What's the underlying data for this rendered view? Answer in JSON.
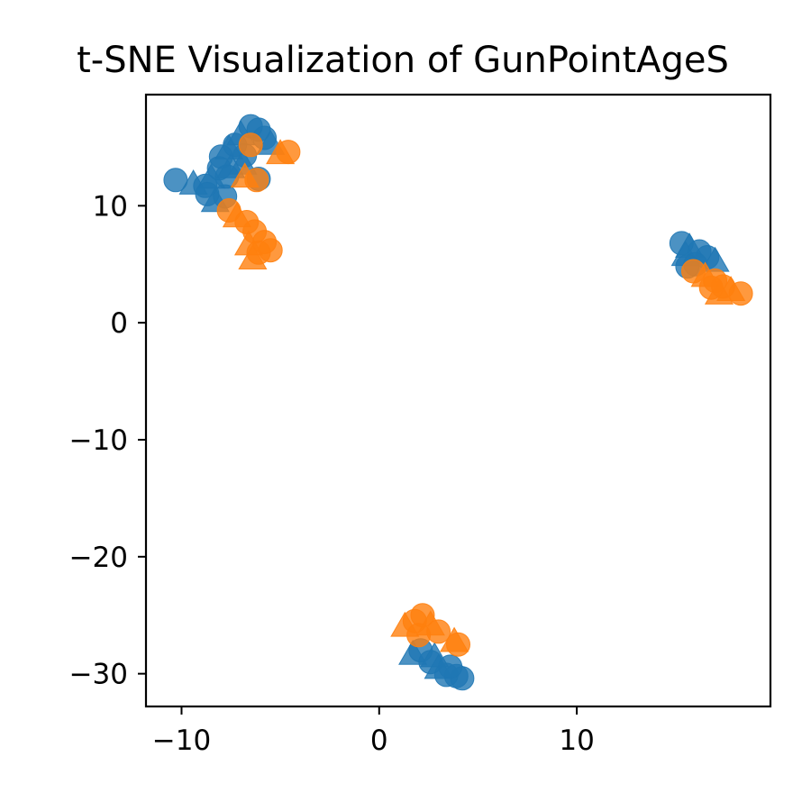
{
  "chart_data": {
    "type": "scatter",
    "title": "t-SNE Visualization of GunPointAgeS",
    "xlabel": "",
    "ylabel": "",
    "xlim": [
      -11.8,
      19.8
    ],
    "ylim": [
      -32.8,
      19.5
    ],
    "xticks": [
      -10,
      0,
      10
    ],
    "xtick_labels": [
      "−10",
      "0",
      "10"
    ],
    "yticks": [
      10,
      0,
      -10,
      -20,
      -30
    ],
    "ytick_labels": [
      "10",
      "0",
      "−10",
      "−20",
      "−30"
    ],
    "grid": false,
    "marker_styles": [
      "circle",
      "triangle"
    ],
    "series": [
      {
        "color": "#1f77b4",
        "points": [
          [
            -10.3,
            12.2,
            "circle"
          ],
          [
            -9.4,
            11.8,
            "triangle"
          ],
          [
            -8.8,
            11.7,
            "circle"
          ],
          [
            -8.5,
            12.3,
            "triangle"
          ],
          [
            -8.1,
            13.2,
            "circle"
          ],
          [
            -8.0,
            14.2,
            "circle"
          ],
          [
            -7.6,
            14.8,
            "triangle"
          ],
          [
            -7.3,
            15.2,
            "circle"
          ],
          [
            -7.0,
            16.0,
            "triangle"
          ],
          [
            -6.5,
            16.8,
            "circle"
          ],
          [
            -6.1,
            16.5,
            "circle"
          ],
          [
            -5.8,
            15.8,
            "circle"
          ],
          [
            -5.5,
            15.2,
            "triangle"
          ],
          [
            -6.8,
            14.3,
            "circle"
          ],
          [
            -7.5,
            13.2,
            "triangle"
          ],
          [
            -8.3,
            10.3,
            "triangle"
          ],
          [
            -7.8,
            10.8,
            "circle"
          ],
          [
            -6.1,
            12.3,
            "circle"
          ],
          [
            -6.9,
            13.5,
            "triangle"
          ],
          [
            -7.7,
            12.5,
            "circle"
          ],
          [
            -8.7,
            11.0,
            "circle"
          ],
          [
            15.3,
            6.8,
            "circle"
          ],
          [
            15.7,
            6.4,
            "triangle"
          ],
          [
            16.2,
            6.1,
            "circle"
          ],
          [
            16.6,
            5.6,
            "circle"
          ],
          [
            15.5,
            5.7,
            "triangle"
          ],
          [
            16.0,
            5.0,
            "circle"
          ],
          [
            15.6,
            4.8,
            "circle"
          ],
          [
            17.0,
            5.2,
            "triangle"
          ],
          [
            1.7,
            -28.4,
            "triangle"
          ],
          [
            2.1,
            -28.0,
            "circle"
          ],
          [
            2.6,
            -29.0,
            "circle"
          ],
          [
            3.0,
            -29.6,
            "triangle"
          ],
          [
            3.4,
            -30.1,
            "circle"
          ],
          [
            3.9,
            -30.2,
            "circle"
          ],
          [
            4.2,
            -30.4,
            "circle"
          ],
          [
            2.8,
            -28.6,
            "triangle"
          ],
          [
            3.6,
            -29.4,
            "circle"
          ]
        ]
      },
      {
        "color": "#ff7f0e",
        "points": [
          [
            -6.5,
            15.2,
            "circle"
          ],
          [
            -4.6,
            14.6,
            "circle"
          ],
          [
            -5.0,
            14.4,
            "triangle"
          ],
          [
            -6.8,
            12.4,
            "triangle"
          ],
          [
            -6.2,
            12.2,
            "circle"
          ],
          [
            -7.6,
            9.6,
            "circle"
          ],
          [
            -7.2,
            9.0,
            "triangle"
          ],
          [
            -6.7,
            8.6,
            "circle"
          ],
          [
            -6.3,
            7.8,
            "circle"
          ],
          [
            -6.6,
            6.6,
            "triangle"
          ],
          [
            -6.1,
            6.0,
            "circle"
          ],
          [
            -5.5,
            6.2,
            "circle"
          ],
          [
            -6.4,
            5.4,
            "triangle"
          ],
          [
            -5.8,
            6.9,
            "circle"
          ],
          [
            15.9,
            4.4,
            "circle"
          ],
          [
            16.5,
            3.9,
            "triangle"
          ],
          [
            17.0,
            3.6,
            "circle"
          ],
          [
            17.4,
            3.1,
            "circle"
          ],
          [
            17.8,
            2.7,
            "triangle"
          ],
          [
            18.3,
            2.5,
            "circle"
          ],
          [
            16.8,
            3.0,
            "circle"
          ],
          [
            17.2,
            2.4,
            "triangle"
          ],
          [
            1.3,
            -26.0,
            "triangle"
          ],
          [
            1.8,
            -25.5,
            "circle"
          ],
          [
            2.2,
            -25.0,
            "circle"
          ],
          [
            2.6,
            -25.9,
            "triangle"
          ],
          [
            3.0,
            -26.4,
            "circle"
          ],
          [
            2.0,
            -26.7,
            "circle"
          ],
          [
            3.8,
            -27.3,
            "triangle"
          ],
          [
            4.0,
            -27.5,
            "circle"
          ]
        ]
      }
    ]
  }
}
